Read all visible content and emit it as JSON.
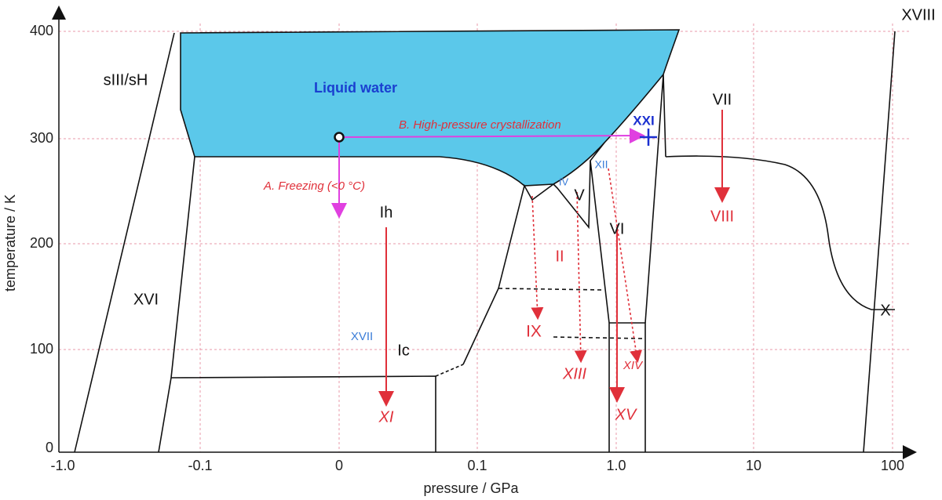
{
  "axes": {
    "y_label": "temperature / K",
    "x_label": "pressure / GPa",
    "y_ticks": [
      "400",
      "300",
      "200",
      "100",
      "0"
    ],
    "x_ticks": [
      "-1.0",
      "-0.1",
      "0",
      "0.1",
      "1.0",
      "10",
      "100"
    ]
  },
  "regions": {
    "liquid": "Liquid water",
    "sIII": "sIII/sH",
    "XVI": "XVI",
    "Ih": "Ih",
    "Ic": "Ic",
    "XVII": "XVII",
    "XI": "XI",
    "II": "II",
    "IX": "IX",
    "XIII": "XIII",
    "IV": "IV",
    "V": "V",
    "XII": "XII",
    "VI": "VI",
    "XIV": "XIV",
    "XV": "XV",
    "XXI": "XXI",
    "VII": "VII",
    "VIII": "VIII",
    "X": "X",
    "XVIII": "XVIII"
  },
  "annotations": {
    "a": "A. Freezing (<0 °C)",
    "b": "B. High-pressure crystallization"
  }
}
